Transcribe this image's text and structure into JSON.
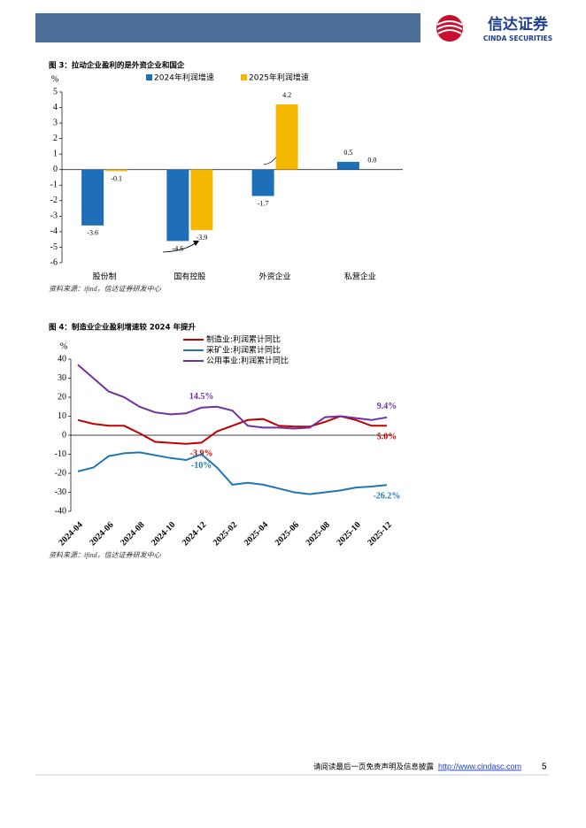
{
  "header": {
    "logo_cn": "信达证券",
    "logo_en": "CINDA SECURITIES"
  },
  "chart_data": [
    {
      "type": "bar",
      "title": "图 3：拉动企业盈利的是外资企业和国企",
      "y_label": "%",
      "categories": [
        "股份制",
        "国有控股",
        "外资企业",
        "私营企业"
      ],
      "series": [
        {
          "name": "2024年利润增速",
          "color": "#1f6fb8",
          "values": [
            -3.6,
            -4.6,
            -1.7,
            0.5
          ],
          "value_labels": [
            "-3.6",
            "-4.6",
            "-1.7",
            "0.5"
          ]
        },
        {
          "name": "2025年利润增速",
          "color": "#f5b800",
          "values": [
            -0.1,
            -3.9,
            4.2,
            0.0
          ],
          "value_labels": [
            "-0.1",
            "-3.9",
            "4.2",
            "0.0"
          ]
        }
      ],
      "ylim": [
        -6,
        5
      ],
      "yticks": [
        -6,
        -5,
        -4,
        -3,
        -2,
        -1,
        0,
        1,
        2,
        3,
        4,
        5
      ],
      "source": "资料来源：ifind，信达证券研发中心"
    },
    {
      "type": "line",
      "title": "图 4：制造业企业盈利增速较 2024 年提升",
      "y_label": "%",
      "categories": [
        "2024-04",
        null,
        "2024-06",
        null,
        "2024-08",
        null,
        "2024-10",
        null,
        "2024-12",
        null,
        "2025-02",
        null,
        "2025-04",
        null,
        "2025-06",
        null,
        "2025-08",
        null,
        "2025-10",
        null,
        "2025-12"
      ],
      "series": [
        {
          "name": "制造业:利润累计同比",
          "color": "#c00000",
          "values": [
            8,
            6,
            5,
            5,
            1,
            -3.5,
            -4,
            -4.5,
            -3.9,
            2,
            5,
            8,
            8.5,
            5,
            4.5,
            4.5,
            7,
            10,
            8,
            5,
            5.0
          ],
          "value_labels": [
            null,
            null,
            null,
            null,
            null,
            null,
            null,
            null,
            "-3.9%",
            null,
            null,
            null,
            null,
            null,
            null,
            null,
            null,
            null,
            null,
            null,
            "5.0%"
          ]
        },
        {
          "name": "采矿业:利润累计同比",
          "color": "#1f77b4",
          "values": [
            -19,
            -17,
            -11,
            -9.5,
            -9,
            -10.5,
            -12,
            -13,
            -10,
            -17,
            -26,
            -25,
            -26,
            -28,
            -30,
            -31,
            -30,
            -29,
            -27.5,
            -27,
            -26.2
          ],
          "value_labels": [
            null,
            null,
            null,
            null,
            null,
            null,
            null,
            null,
            "-10%",
            null,
            null,
            null,
            null,
            null,
            null,
            null,
            null,
            null,
            null,
            null,
            "-26.2%"
          ]
        },
        {
          "name": "公用事业:利润累计同比",
          "color": "#7030a0",
          "values": [
            37,
            30,
            23,
            20,
            15,
            12,
            11,
            11.5,
            14.5,
            15,
            13,
            5,
            4,
            4,
            3.5,
            4,
            9.5,
            10,
            9,
            8,
            9.4
          ],
          "value_labels": [
            null,
            null,
            null,
            null,
            null,
            null,
            null,
            null,
            "14.5%",
            null,
            null,
            null,
            null,
            null,
            null,
            null,
            null,
            null,
            null,
            null,
            "9.4%"
          ]
        }
      ],
      "ylim": [
        -40,
        40
      ],
      "yticks": [
        -40,
        -30,
        -20,
        -10,
        0,
        10,
        20,
        30,
        40
      ],
      "source": "资料来源：ifind，信达证券研发中心"
    }
  ],
  "footer": {
    "disclaimer": "请阅读最后一页免责声明及信息披露",
    "url": "http://www.cindasc.com",
    "page": "5"
  }
}
